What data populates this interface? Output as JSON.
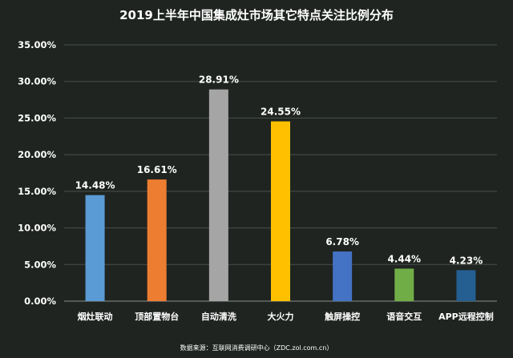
{
  "chart_data": {
    "type": "bar",
    "title": "2019上半年中国集成灶市场其它特点关注比例分布",
    "categories": [
      "烟灶联动",
      "顶部置物台",
      "自动清洗",
      "大火力",
      "触屏操控",
      "语音交互",
      "APP远程控制"
    ],
    "values": [
      14.48,
      16.61,
      28.91,
      24.55,
      6.78,
      4.44,
      4.23
    ],
    "value_labels": [
      "14.48%",
      "16.61%",
      "28.91%",
      "24.55%",
      "6.78%",
      "4.44%",
      "4.23%"
    ],
    "colors": [
      "#5b9bd5",
      "#ed7d31",
      "#a5a5a5",
      "#ffc000",
      "#4472c4",
      "#70ad47",
      "#255e91"
    ],
    "yticks": [
      0,
      5,
      10,
      15,
      20,
      25,
      30,
      35
    ],
    "ytick_labels": [
      "0.00%",
      "5.00%",
      "10.00%",
      "15.00%",
      "20.00%",
      "25.00%",
      "30.00%",
      "35.00%"
    ],
    "ylim": [
      0,
      35
    ],
    "grid": true,
    "legend": "none",
    "source": "数据来源：互联网消费调研中心（ZDC.zol.com.cn）"
  },
  "colors": {
    "background": "#1f2420",
    "text": "#ffffff",
    "grid": "#4a4f4b"
  }
}
